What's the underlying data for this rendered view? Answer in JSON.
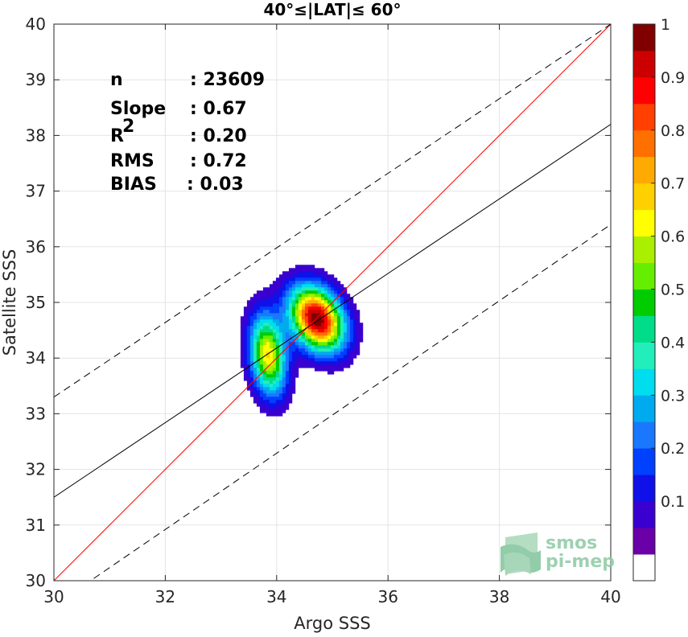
{
  "chart_data": {
    "type": "contour",
    "title": "40°≤|LAT|≤ 60°",
    "xlabel": "Argo SSS",
    "ylabel": "Satellite SSS",
    "xlim": [
      30,
      40
    ],
    "ylim": [
      30,
      40
    ],
    "x_ticks": [
      "30",
      "32",
      "34",
      "36",
      "38",
      "40"
    ],
    "y_ticks": [
      "30",
      "31",
      "32",
      "33",
      "34",
      "35",
      "36",
      "37",
      "38",
      "39",
      "40"
    ],
    "grid": true,
    "stats": [
      {
        "label": "n",
        "value": ": 23609"
      },
      {
        "label": "Slope",
        "value": ": 0.67"
      },
      {
        "label": "R",
        "sup": "2",
        "value": ": 0.20"
      },
      {
        "label": "RMS",
        "value": ": 0.72"
      },
      {
        "label": "BIAS",
        "value": ": 0.03"
      }
    ],
    "lines": {
      "identity": {
        "x": [
          30,
          40
        ],
        "y": [
          30,
          40
        ],
        "color": "#ff0000"
      },
      "regression": {
        "x": [
          30,
          40
        ],
        "y": [
          31.5,
          38.2
        ],
        "color": "#000000"
      },
      "upper_bound": {
        "x": [
          30,
          40
        ],
        "y": [
          33.3,
          40.0
        ],
        "color": "#000000",
        "style": "dashed"
      },
      "lower_bound": {
        "x": [
          30,
          40
        ],
        "y": [
          29.55,
          36.4
        ],
        "color": "#000000",
        "style": "dashed"
      }
    },
    "density_peaks": [
      {
        "x": 34.73,
        "y": 34.7,
        "level": 1.0
      },
      {
        "x": 33.85,
        "y": 34.05,
        "level": 0.65
      }
    ],
    "contour_levels": [
      0.05,
      0.1,
      0.15,
      0.2,
      0.25,
      0.3,
      0.35,
      0.4,
      0.45,
      0.5,
      0.55,
      0.6,
      0.65,
      0.7,
      0.75,
      0.8,
      0.85,
      0.9,
      0.95
    ],
    "colorbar": {
      "ticks": [
        "0.1",
        "0.2",
        "0.3",
        "0.4",
        "0.5",
        "0.6",
        "0.7",
        "0.8",
        "0.9",
        "1"
      ],
      "tick_values": [
        0.1,
        0.2,
        0.3,
        0.4,
        0.5,
        0.6,
        0.7,
        0.8,
        0.9,
        1.0
      ],
      "colors": [
        "#ffffff",
        "#6a00a8",
        "#3a00d0",
        "#1010e8",
        "#0040ff",
        "#1a78ff",
        "#00aaee",
        "#00ddee",
        "#22eebb",
        "#00dd88",
        "#00cc00",
        "#66ee00",
        "#aaee00",
        "#ffff00",
        "#ffd000",
        "#ffaa00",
        "#ff7000",
        "#ff4000",
        "#ff0000",
        "#cc0000",
        "#800000"
      ]
    }
  },
  "watermark": {
    "line1": "smos",
    "line2": "pi-mep"
  }
}
